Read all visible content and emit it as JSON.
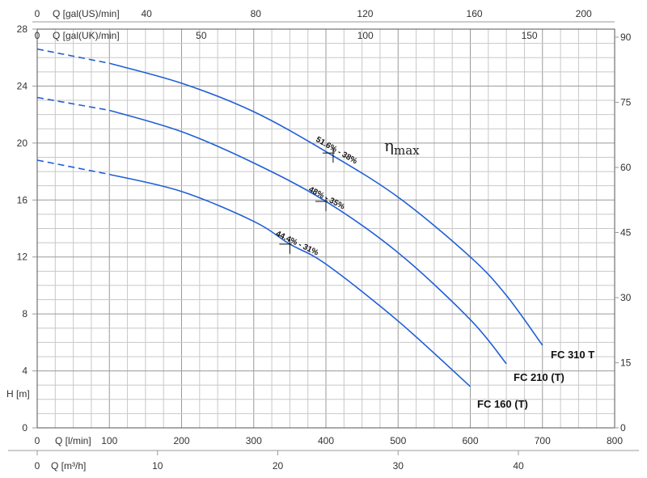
{
  "chart_data": {
    "type": "line",
    "axes": {
      "x_bottom_1": {
        "label": "Q [l/min]",
        "range": [
          0,
          800
        ],
        "ticks": [
          "0",
          "100",
          "200",
          "300",
          "400",
          "500",
          "600",
          "700",
          "800"
        ]
      },
      "x_bottom_2": {
        "label": "Q [m³/h]",
        "range": [
          0,
          48
        ],
        "ticks": [
          "0",
          "10",
          "20",
          "30",
          "40"
        ]
      },
      "x_top_1": {
        "label": "Q [gal(US)/min]",
        "range": [
          0,
          211.34
        ],
        "ticks": [
          "0",
          "40",
          "80",
          "120",
          "160",
          "200"
        ]
      },
      "x_top_2": {
        "label": "Q [gal(UK)/min]",
        "range": [
          0,
          175.98
        ],
        "ticks": [
          "0",
          "50",
          "100",
          "150"
        ]
      },
      "y_left": {
        "label": "H [m]",
        "range": [
          0,
          28
        ],
        "ticks": [
          "0",
          "4",
          "8",
          "12",
          "16",
          "20",
          "24",
          "28"
        ]
      },
      "y_right": {
        "range": [
          0,
          91.86
        ],
        "ticks": [
          "0",
          "15",
          "30",
          "45",
          "60",
          "75",
          "90"
        ]
      }
    },
    "grid": true,
    "efficiency_title": "η",
    "efficiency_title_sub": "max",
    "series": [
      {
        "name": "FC 310 T",
        "dashed_x": [
          0,
          100
        ],
        "dashed_y": [
          26.6,
          25.6
        ],
        "x": [
          100,
          200,
          300,
          400,
          500,
          600,
          650,
          700
        ],
        "y": [
          25.6,
          24.2,
          22.2,
          19.4,
          16.2,
          12.0,
          9.3,
          5.8
        ],
        "efficiency_label": "51.6% - 38%",
        "efficiency_point": [
          410,
          19.3
        ]
      },
      {
        "name": "FC 210 (T)",
        "dashed_x": [
          0,
          100
        ],
        "dashed_y": [
          23.2,
          22.3
        ],
        "x": [
          100,
          200,
          300,
          400,
          500,
          600,
          650
        ],
        "y": [
          22.3,
          20.8,
          18.6,
          15.9,
          12.3,
          7.6,
          4.5
        ],
        "efficiency_label": "48% - 35%",
        "efficiency_point": [
          400,
          15.9
        ]
      },
      {
        "name": "FC 160 (T)",
        "dashed_x": [
          0,
          100
        ],
        "dashed_y": [
          18.8,
          17.8
        ],
        "x": [
          100,
          200,
          300,
          350,
          400,
          500,
          600
        ],
        "y": [
          17.8,
          16.6,
          14.5,
          12.9,
          11.5,
          7.5,
          2.9
        ],
        "efficiency_label": "44.4% - 31%",
        "efficiency_point": [
          350,
          12.9
        ]
      }
    ]
  }
}
